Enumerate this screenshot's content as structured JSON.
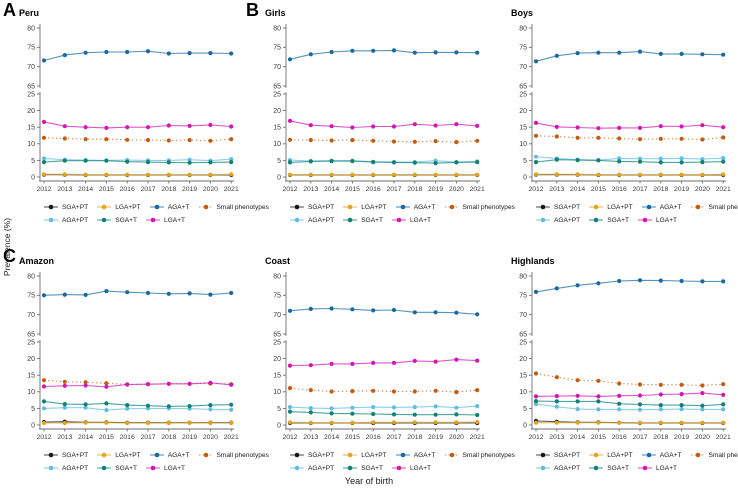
{
  "figure": {
    "panel_letters": [
      "A",
      "B",
      "C"
    ],
    "y_axis_label": "Prevalence (%)",
    "x_axis_label": "Year of birth"
  },
  "legend": {
    "rows": [
      [
        "SGA+PT",
        "LGA+PT",
        "AGA+T",
        "Small phenotypes"
      ],
      [
        "AGA+PT",
        "SGA+T",
        "LGA+T"
      ]
    ]
  },
  "series_colors": {
    "SGA+PT": "#1a1a1a",
    "LGA+PT": "#e2a41c",
    "AGA+T": "#17699f",
    "Small phenotypes": "#c35c0e",
    "AGA+PT": "#62bde2",
    "SGA+T": "#0c8174",
    "LGA+T": "#d316b1"
  },
  "chart_data": [
    {
      "type": "line",
      "title": "Peru",
      "x": [
        2012,
        2013,
        2014,
        2015,
        2016,
        2017,
        2018,
        2019,
        2020,
        2021
      ],
      "xlabel": "Year of birth",
      "ylabel": "Prevalence (%)",
      "y_ticks_lower": [
        0,
        5,
        10,
        15,
        20,
        25
      ],
      "y_ticks_upper": [
        65,
        70,
        75,
        80
      ],
      "axis_break": true,
      "grid": false,
      "legend_position": "bottom",
      "series": [
        {
          "name": "SGA+PT",
          "dotted": false,
          "values": [
            0.7,
            0.7,
            0.6,
            0.6,
            0.6,
            0.6,
            0.6,
            0.6,
            0.6,
            0.6
          ]
        },
        {
          "name": "LGA+PT",
          "dotted": false,
          "values": [
            0.8,
            0.8,
            0.7,
            0.7,
            0.7,
            0.7,
            0.7,
            0.7,
            0.7,
            0.8
          ]
        },
        {
          "name": "AGA+T",
          "dotted": false,
          "values": [
            71.6,
            73.0,
            73.6,
            73.8,
            73.8,
            74.0,
            73.4,
            73.5,
            73.5,
            73.4
          ]
        },
        {
          "name": "Small phenotypes",
          "dotted": true,
          "values": [
            11.8,
            11.6,
            11.4,
            11.4,
            11.2,
            11.1,
            11.0,
            11.1,
            10.9,
            11.4
          ]
        },
        {
          "name": "AGA+PT",
          "dotted": false,
          "values": [
            5.6,
            5.2,
            5.1,
            5.0,
            5.1,
            5.0,
            5.0,
            5.2,
            4.9,
            5.4
          ]
        },
        {
          "name": "SGA+T",
          "dotted": false,
          "values": [
            4.5,
            4.9,
            4.9,
            4.9,
            4.6,
            4.5,
            4.4,
            4.3,
            4.4,
            4.5
          ]
        },
        {
          "name": "LGA+T",
          "dotted": false,
          "values": [
            16.6,
            15.3,
            15.0,
            14.8,
            15.0,
            15.0,
            15.5,
            15.4,
            15.7,
            15.2
          ]
        }
      ]
    },
    {
      "type": "line",
      "title": "Girls",
      "x": [
        2012,
        2013,
        2014,
        2015,
        2016,
        2017,
        2018,
        2019,
        2020,
        2021
      ],
      "xlabel": "Year of birth",
      "ylabel": "Prevalence (%)",
      "y_ticks_lower": [
        0,
        5,
        10,
        15,
        20,
        25
      ],
      "y_ticks_upper": [
        65,
        70,
        75,
        80
      ],
      "axis_break": true,
      "grid": false,
      "legend_position": "bottom",
      "series": [
        {
          "name": "SGA+PT",
          "dotted": false,
          "values": [
            0.6,
            0.6,
            0.6,
            0.6,
            0.6,
            0.6,
            0.6,
            0.6,
            0.6,
            0.6
          ]
        },
        {
          "name": "LGA+PT",
          "dotted": false,
          "values": [
            0.7,
            0.7,
            0.7,
            0.7,
            0.7,
            0.7,
            0.7,
            0.7,
            0.7,
            0.7
          ]
        },
        {
          "name": "AGA+T",
          "dotted": false,
          "values": [
            71.9,
            73.2,
            73.8,
            74.1,
            74.1,
            74.2,
            73.6,
            73.7,
            73.7,
            73.6
          ]
        },
        {
          "name": "Small phenotypes",
          "dotted": true,
          "values": [
            11.2,
            11.1,
            11.0,
            11.1,
            10.9,
            10.7,
            10.6,
            10.8,
            10.5,
            10.9
          ]
        },
        {
          "name": "AGA+PT",
          "dotted": false,
          "values": [
            5.1,
            4.8,
            4.9,
            4.9,
            4.6,
            4.5,
            4.5,
            4.9,
            4.5,
            4.7
          ]
        },
        {
          "name": "SGA+T",
          "dotted": false,
          "values": [
            4.4,
            4.7,
            4.8,
            4.8,
            4.5,
            4.4,
            4.3,
            4.2,
            4.4,
            4.5
          ]
        },
        {
          "name": "LGA+T",
          "dotted": false,
          "values": [
            16.9,
            15.6,
            15.3,
            14.9,
            15.2,
            15.2,
            15.9,
            15.5,
            15.9,
            15.4
          ]
        }
      ]
    },
    {
      "type": "line",
      "title": "Boys",
      "x": [
        2012,
        2013,
        2014,
        2015,
        2016,
        2017,
        2018,
        2019,
        2020,
        2021
      ],
      "xlabel": "Year of birth",
      "ylabel": "Prevalence (%)",
      "y_ticks_lower": [
        0,
        5,
        10,
        15,
        20,
        25
      ],
      "y_ticks_upper": [
        65,
        70,
        75,
        80
      ],
      "axis_break": true,
      "grid": false,
      "legend_position": "bottom",
      "series": [
        {
          "name": "SGA+PT",
          "dotted": false,
          "values": [
            0.7,
            0.7,
            0.7,
            0.6,
            0.6,
            0.6,
            0.6,
            0.6,
            0.6,
            0.6
          ]
        },
        {
          "name": "LGA+PT",
          "dotted": false,
          "values": [
            0.8,
            0.8,
            0.8,
            0.7,
            0.7,
            0.7,
            0.7,
            0.7,
            0.7,
            0.8
          ]
        },
        {
          "name": "AGA+T",
          "dotted": false,
          "values": [
            71.4,
            72.8,
            73.5,
            73.6,
            73.6,
            73.9,
            73.3,
            73.3,
            73.2,
            73.1
          ]
        },
        {
          "name": "Small phenotypes",
          "dotted": true,
          "values": [
            12.4,
            12.2,
            11.8,
            11.8,
            11.6,
            11.4,
            11.5,
            11.5,
            11.3,
            11.9
          ]
        },
        {
          "name": "AGA+PT",
          "dotted": false,
          "values": [
            6.1,
            5.6,
            5.2,
            5.1,
            5.6,
            5.5,
            5.5,
            5.6,
            5.4,
            5.7
          ]
        },
        {
          "name": "SGA+T",
          "dotted": false,
          "values": [
            4.5,
            5.2,
            5.1,
            5.0,
            4.7,
            4.6,
            4.4,
            4.4,
            4.5,
            4.6
          ]
        },
        {
          "name": "LGA+T",
          "dotted": false,
          "values": [
            16.3,
            15.1,
            14.9,
            14.7,
            14.8,
            14.8,
            15.3,
            15.2,
            15.6,
            15.0
          ]
        }
      ]
    },
    {
      "type": "line",
      "title": "Amazon",
      "x": [
        2012,
        2013,
        2014,
        2015,
        2016,
        2017,
        2018,
        2019,
        2020,
        2021
      ],
      "xlabel": "Year of birth",
      "ylabel": "Prevalence (%)",
      "y_ticks_lower": [
        0,
        5,
        10,
        15,
        20,
        25
      ],
      "y_ticks_upper": [
        65,
        70,
        75,
        80
      ],
      "axis_break": true,
      "grid": false,
      "legend_position": "bottom",
      "series": [
        {
          "name": "SGA+PT",
          "dotted": false,
          "values": [
            0.9,
            1.0,
            0.8,
            0.8,
            0.7,
            0.7,
            0.7,
            0.7,
            0.7,
            0.7
          ]
        },
        {
          "name": "LGA+PT",
          "dotted": false,
          "values": [
            0.6,
            0.6,
            0.7,
            0.7,
            0.6,
            0.6,
            0.6,
            0.7,
            0.6,
            0.6
          ]
        },
        {
          "name": "AGA+T",
          "dotted": false,
          "values": [
            75.0,
            75.2,
            75.1,
            76.1,
            75.8,
            75.6,
            75.4,
            75.5,
            75.2,
            75.6
          ]
        },
        {
          "name": "Small phenotypes",
          "dotted": true,
          "values": [
            13.5,
            13.0,
            12.9,
            12.6,
            12.2,
            12.3,
            12.4,
            12.4,
            12.5,
            12.3
          ]
        },
        {
          "name": "AGA+PT",
          "dotted": false,
          "values": [
            5.0,
            5.2,
            5.2,
            4.5,
            4.9,
            5.0,
            5.0,
            4.9,
            4.7,
            4.6
          ]
        },
        {
          "name": "SGA+T",
          "dotted": false,
          "values": [
            7.1,
            6.3,
            6.2,
            6.5,
            6.0,
            5.8,
            5.6,
            5.7,
            6.0,
            6.1
          ]
        },
        {
          "name": "LGA+T",
          "dotted": false,
          "values": [
            11.6,
            11.8,
            11.9,
            11.5,
            12.2,
            12.3,
            12.4,
            12.4,
            12.7,
            12.1
          ]
        }
      ]
    },
    {
      "type": "line",
      "title": "Coast",
      "x": [
        2012,
        2013,
        2014,
        2015,
        2016,
        2017,
        2018,
        2019,
        2020,
        2021
      ],
      "xlabel": "Year of birth",
      "ylabel": "Prevalence (%)",
      "y_ticks_lower": [
        0,
        5,
        10,
        15,
        20,
        25
      ],
      "y_ticks_upper": [
        65,
        70,
        75,
        80
      ],
      "axis_break": true,
      "grid": false,
      "legend_position": "bottom",
      "series": [
        {
          "name": "SGA+PT",
          "dotted": false,
          "values": [
            0.6,
            0.6,
            0.6,
            0.6,
            0.6,
            0.6,
            0.6,
            0.6,
            0.6,
            0.6
          ]
        },
        {
          "name": "LGA+PT",
          "dotted": false,
          "values": [
            0.8,
            0.7,
            0.7,
            0.7,
            0.8,
            0.8,
            0.8,
            0.8,
            0.8,
            0.9
          ]
        },
        {
          "name": "AGA+T",
          "dotted": false,
          "values": [
            71.0,
            71.5,
            71.6,
            71.4,
            71.1,
            71.2,
            70.6,
            70.6,
            70.5,
            70.1
          ]
        },
        {
          "name": "Small phenotypes",
          "dotted": true,
          "values": [
            11.1,
            10.5,
            10.1,
            10.2,
            10.3,
            10.1,
            10.1,
            10.3,
            9.9,
            10.5
          ]
        },
        {
          "name": "AGA+PT",
          "dotted": false,
          "values": [
            5.4,
            5.1,
            5.0,
            5.2,
            5.4,
            5.3,
            5.4,
            5.6,
            5.2,
            5.7
          ]
        },
        {
          "name": "SGA+T",
          "dotted": false,
          "values": [
            4.0,
            3.8,
            3.5,
            3.4,
            3.3,
            3.2,
            3.1,
            3.1,
            3.2,
            3.0
          ]
        },
        {
          "name": "LGA+T",
          "dotted": false,
          "values": [
            17.9,
            18.0,
            18.4,
            18.4,
            18.7,
            18.7,
            19.3,
            19.1,
            19.7,
            19.4
          ]
        }
      ]
    },
    {
      "type": "line",
      "title": "Highlands",
      "x": [
        2012,
        2013,
        2014,
        2015,
        2016,
        2017,
        2018,
        2019,
        2020,
        2021
      ],
      "xlabel": "Year of birth",
      "ylabel": "Prevalence (%)",
      "y_ticks_lower": [
        0,
        5,
        10,
        15,
        20,
        25
      ],
      "y_ticks_upper": [
        65,
        70,
        75,
        80
      ],
      "axis_break": true,
      "grid": false,
      "legend_position": "bottom",
      "series": [
        {
          "name": "SGA+PT",
          "dotted": false,
          "values": [
            1.2,
            1.0,
            0.8,
            0.8,
            0.7,
            0.6,
            0.6,
            0.6,
            0.6,
            0.6
          ]
        },
        {
          "name": "LGA+PT",
          "dotted": false,
          "values": [
            0.7,
            0.7,
            0.7,
            0.7,
            0.7,
            0.7,
            0.7,
            0.7,
            0.7,
            0.7
          ]
        },
        {
          "name": "AGA+T",
          "dotted": false,
          "values": [
            75.9,
            76.8,
            77.6,
            78.1,
            78.7,
            78.9,
            78.8,
            78.7,
            78.6,
            78.6
          ]
        },
        {
          "name": "Small phenotypes",
          "dotted": true,
          "values": [
            15.5,
            14.4,
            13.5,
            13.3,
            12.5,
            12.2,
            12.1,
            12.1,
            11.9,
            12.3
          ]
        },
        {
          "name": "AGA+PT",
          "dotted": false,
          "values": [
            6.3,
            5.5,
            4.8,
            4.7,
            4.7,
            4.6,
            4.7,
            4.8,
            4.7,
            4.7
          ]
        },
        {
          "name": "SGA+T",
          "dotted": false,
          "values": [
            7.2,
            7.1,
            7.1,
            7.1,
            6.4,
            6.2,
            6.0,
            6.0,
            5.8,
            6.2
          ]
        },
        {
          "name": "LGA+T",
          "dotted": false,
          "values": [
            8.6,
            8.7,
            8.8,
            8.6,
            8.8,
            8.9,
            9.2,
            9.3,
            9.6,
            9.1
          ]
        }
      ]
    }
  ]
}
